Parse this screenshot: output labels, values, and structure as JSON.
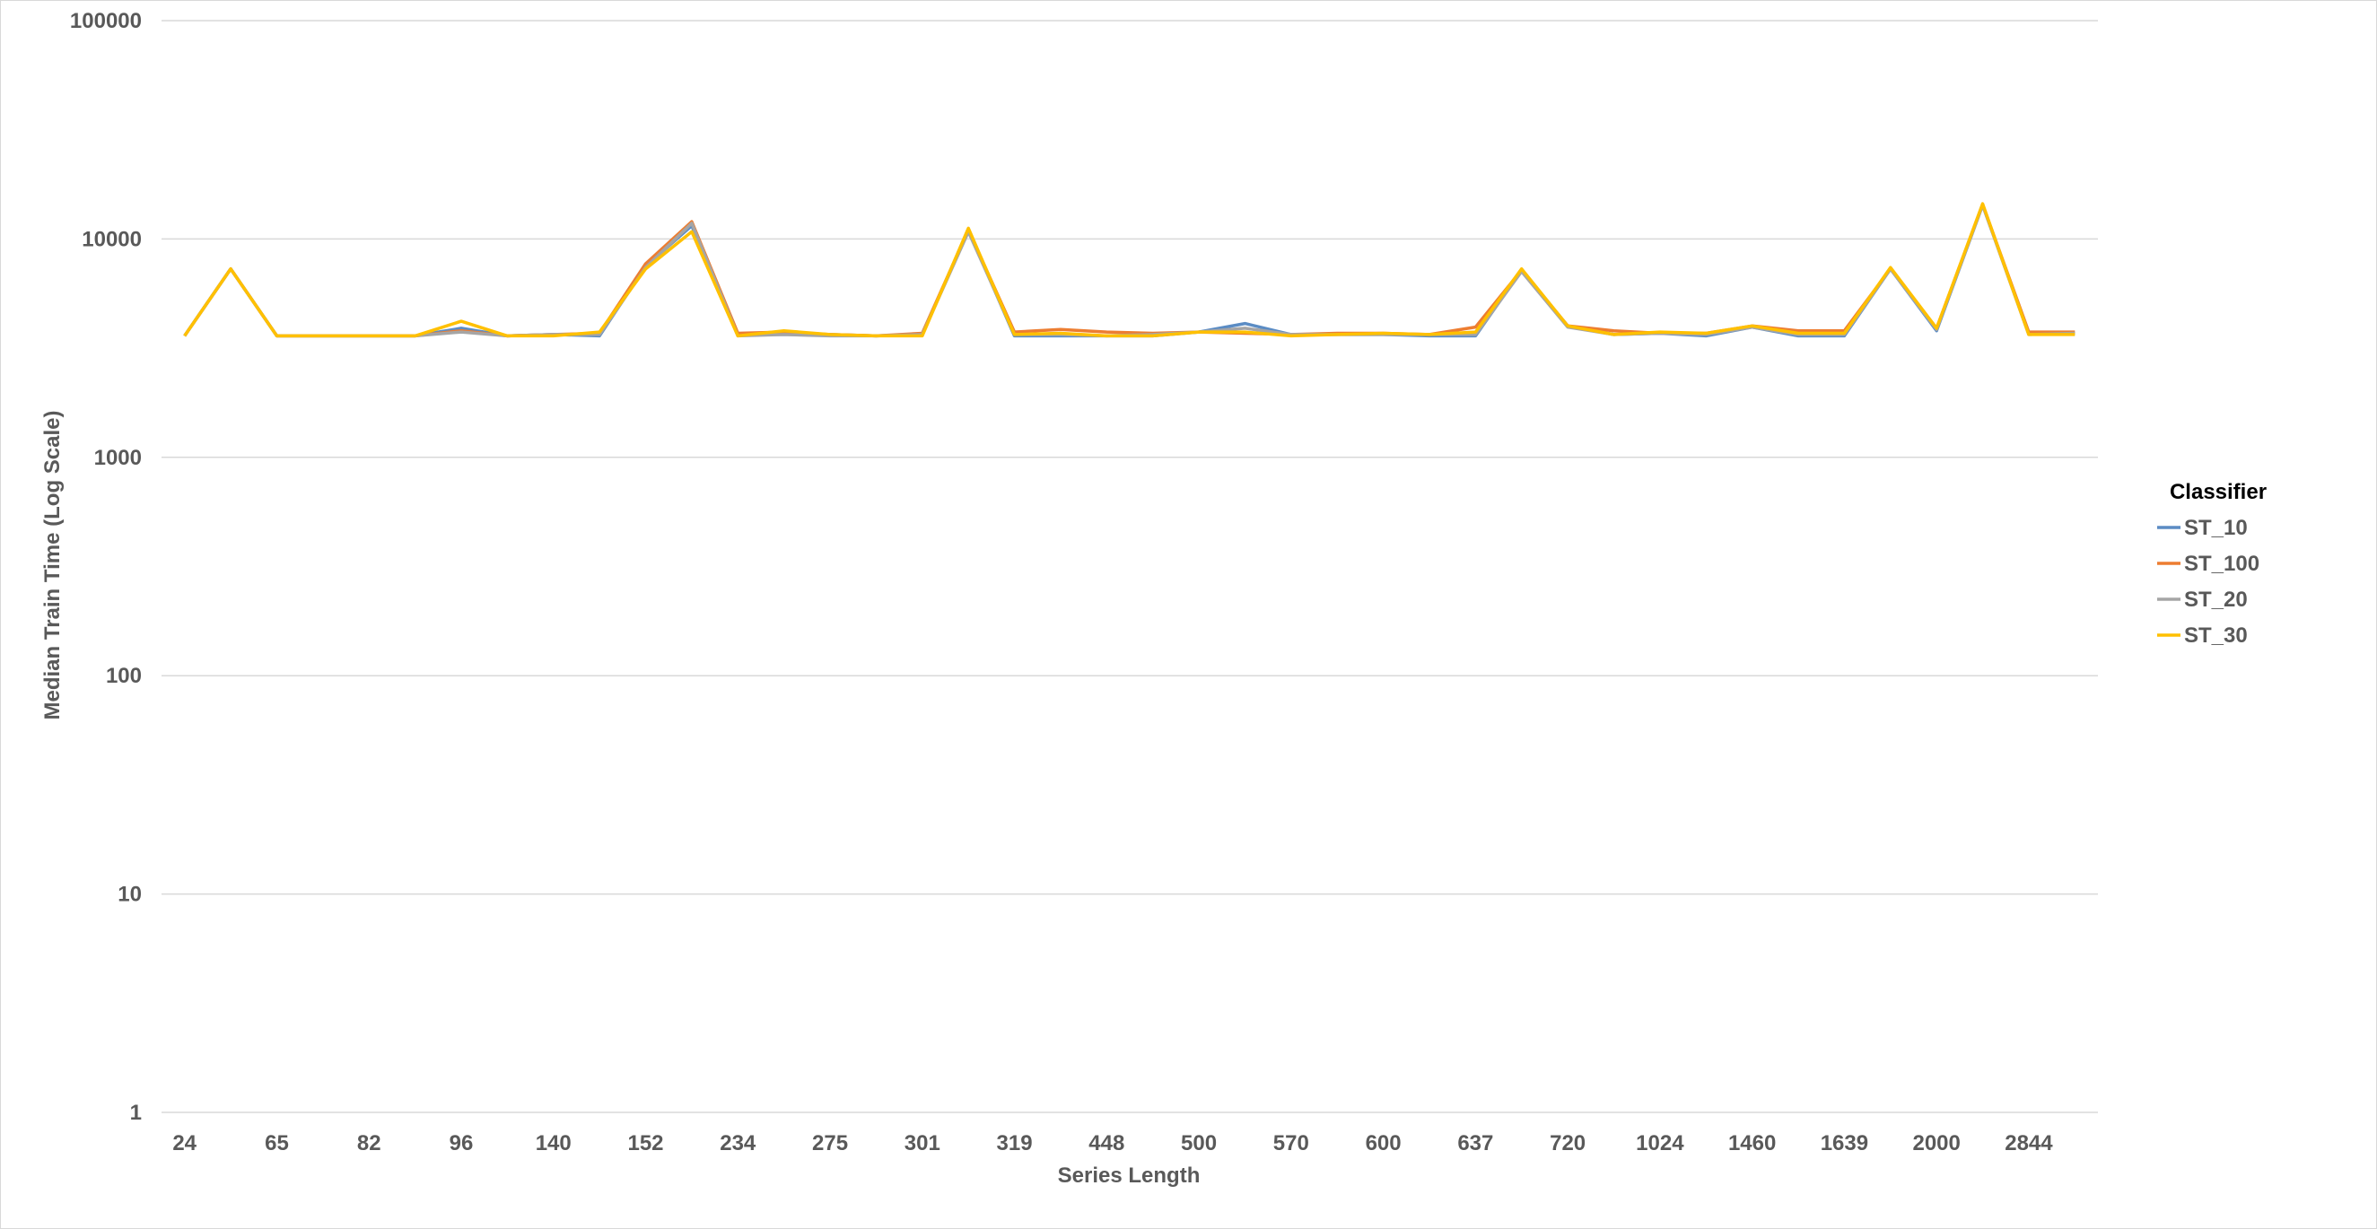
{
  "chart_data": {
    "type": "line",
    "xlabel": "Series Length",
    "ylabel": "Median Train Time (Log Scale)",
    "y_scale": "log",
    "ylim": [
      1,
      100000
    ],
    "y_ticks": [
      "1",
      "10",
      "100",
      "1000",
      "10000",
      "100000"
    ],
    "grid": "horizontal",
    "legend": {
      "title": "Classifier",
      "position": "right"
    },
    "categories": [
      "24",
      "",
      "65",
      "",
      "82",
      "",
      "96",
      "",
      "140",
      "",
      "152",
      "",
      "234",
      "",
      "275",
      "",
      "301",
      "",
      "319",
      "",
      "448",
      "",
      "500",
      "",
      "570",
      "",
      "600",
      "",
      "637",
      "",
      "720",
      "",
      "1024",
      "",
      "1460",
      "",
      "1639",
      "",
      "2000",
      "",
      "2844",
      ""
    ],
    "series": [
      {
        "name": "ST_10",
        "color": "#5b8cc4",
        "values": [
          3600,
          7300,
          3600,
          3600,
          3600,
          3600,
          3900,
          3600,
          3650,
          3600,
          7500,
          11500,
          3650,
          3650,
          3650,
          3600,
          3650,
          11000,
          3600,
          3600,
          3600,
          3600,
          3750,
          4100,
          3650,
          3650,
          3650,
          3600,
          3600,
          7200,
          4000,
          3650,
          3700,
          3600,
          3950,
          3600,
          3600,
          7300,
          3800,
          14300,
          3700,
          3700
        ]
      },
      {
        "name": "ST_100",
        "color": "#ed7d31",
        "values": [
          3600,
          7300,
          3600,
          3600,
          3600,
          3600,
          3800,
          3600,
          3650,
          3700,
          7700,
          12000,
          3700,
          3750,
          3650,
          3600,
          3700,
          11000,
          3750,
          3850,
          3750,
          3700,
          3750,
          3700,
          3650,
          3700,
          3700,
          3650,
          3950,
          7200,
          4000,
          3800,
          3700,
          3700,
          4000,
          3800,
          3800,
          7300,
          3900,
          14400,
          3750,
          3750
        ]
      },
      {
        "name": "ST_20",
        "color": "#a5a5a5",
        "values": [
          3600,
          7300,
          3600,
          3600,
          3600,
          3600,
          3750,
          3600,
          3650,
          3650,
          7400,
          11800,
          3600,
          3650,
          3600,
          3600,
          3650,
          10800,
          3650,
          3650,
          3600,
          3650,
          3750,
          3900,
          3650,
          3650,
          3650,
          3650,
          3650,
          7100,
          3950,
          3650,
          3700,
          3650,
          3950,
          3650,
          3650,
          7300,
          3850,
          14300,
          3650,
          3700
        ]
      },
      {
        "name": "ST_30",
        "color": "#ffc000",
        "values": [
          3600,
          7300,
          3600,
          3600,
          3600,
          3600,
          4200,
          3600,
          3600,
          3750,
          7300,
          10800,
          3600,
          3800,
          3650,
          3600,
          3600,
          11200,
          3650,
          3700,
          3600,
          3600,
          3750,
          3750,
          3600,
          3650,
          3700,
          3650,
          3750,
          7300,
          4000,
          3650,
          3750,
          3700,
          4000,
          3700,
          3700,
          7400,
          3900,
          14500,
          3650,
          3650
        ]
      }
    ]
  }
}
